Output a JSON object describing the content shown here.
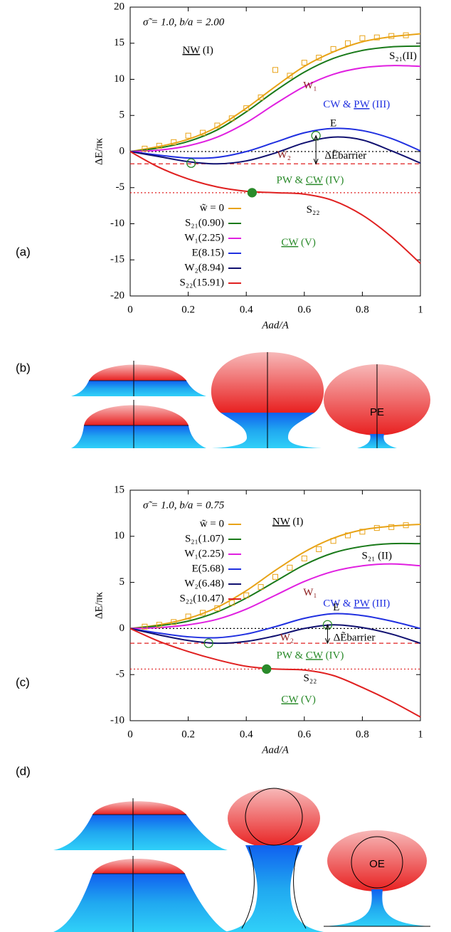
{
  "panel_labels": [
    "(a)",
    "(b)",
    "(c)",
    "(d)"
  ],
  "shape_labels": [
    "PE",
    "OE"
  ],
  "chart_data": [
    {
      "type": "line",
      "title": "σ̃ = 1.0, b/a = 2.00",
      "x_label": "Aad/A",
      "y_label": "ΔE/πκ",
      "xlim": [
        0,
        1
      ],
      "xticks": [
        0,
        0.2,
        0.4,
        0.6,
        0.8,
        1
      ],
      "ylim": [
        -20,
        20
      ],
      "yticks": [
        -20,
        -15,
        -10,
        -5,
        0,
        5,
        10,
        15,
        20
      ],
      "legend": "lower left",
      "x": [
        0,
        0.1,
        0.2,
        0.3,
        0.4,
        0.5,
        0.6,
        0.7,
        0.8,
        0.9,
        1
      ],
      "series": [
        {
          "name": "w̃ = 0",
          "color": "#e8a317",
          "values": [
            0,
            0.7,
            1.7,
            3.4,
            6.0,
            9.0,
            11.8,
            13.8,
            15.2,
            15.9,
            16.3
          ]
        },
        {
          "name": "S₂₁(0.90)",
          "color": "#1a7a1a",
          "values": [
            0,
            0.5,
            1.4,
            3.0,
            5.5,
            8.4,
            11.0,
            12.9,
            14.0,
            14.5,
            14.6
          ]
        },
        {
          "name": "W₁(2.25)",
          "color": "#e020e0",
          "values": [
            0,
            0.2,
            0.8,
            2.0,
            4.0,
            6.6,
            9.0,
            10.7,
            11.6,
            11.9,
            11.8
          ]
        },
        {
          "name": "E(8.15)",
          "color": "#2030e0",
          "values": [
            0,
            -0.5,
            -0.9,
            -0.8,
            0,
            1.3,
            2.6,
            3.2,
            2.9,
            1.8,
            0.1
          ]
        },
        {
          "name": "W₂(8.94)",
          "color": "#101070",
          "values": [
            0,
            -0.7,
            -1.4,
            -1.7,
            -1.3,
            -0.2,
            1.2,
            2.0,
            1.6,
            0.1,
            -1.6
          ]
        },
        {
          "name": "S₂₂(15.91)",
          "color": "#e02020",
          "values": [
            0,
            -2.2,
            -3.8,
            -4.9,
            -5.5,
            -5.7,
            -5.9,
            -6.8,
            -8.8,
            -11.8,
            -15.5
          ]
        }
      ],
      "sample_points": {
        "color": "#e8a317",
        "x": [
          0.05,
          0.1,
          0.15,
          0.2,
          0.25,
          0.3,
          0.35,
          0.4,
          0.45,
          0.5,
          0.55,
          0.6,
          0.65,
          0.7,
          0.75,
          0.8,
          0.85,
          0.9,
          0.95
        ],
        "values": [
          0.4,
          0.8,
          1.3,
          2.2,
          2.6,
          3.6,
          4.6,
          6.0,
          7.5,
          11.3,
          10.5,
          12.3,
          13.0,
          14.2,
          15.0,
          15.7,
          15.8,
          16.0,
          16.1
        ]
      },
      "reference_lines": [
        {
          "value": 0,
          "color": "#000000",
          "style": "dotted"
        },
        {
          "value": -1.7,
          "color": "#e02020",
          "style": "dashed"
        },
        {
          "value": -5.7,
          "color": "#e02020",
          "style": "dotted"
        }
      ],
      "markers": [
        {
          "x": 0.21,
          "y": -1.6,
          "filled": false,
          "color": "#2a8a2a"
        },
        {
          "x": 0.64,
          "y": 2.2,
          "filled": false,
          "color": "#2a8a2a"
        },
        {
          "x": 0.42,
          "y": -5.7,
          "filled": true,
          "color": "#2a8a2a"
        }
      ],
      "annotations": [
        {
          "color": "#000000",
          "parts": [
            {
              "text": "NW",
              "underline": true
            },
            {
              "text": " (I)"
            }
          ]
        },
        {
          "color": "#000000",
          "parts": [
            {
              "text": "S₂₁(II)"
            }
          ]
        },
        {
          "color": "#8b1a1a",
          "parts": [
            {
              "text": "W₁"
            }
          ]
        },
        {
          "color": "#2030e0",
          "parts": [
            {
              "text": "CW & "
            },
            {
              "text": "PW",
              "underline": true
            },
            {
              "text": " (III)"
            }
          ]
        },
        {
          "color": "#000000",
          "parts": [
            {
              "text": "E"
            }
          ]
        },
        {
          "color": "#8b1a1a",
          "parts": [
            {
              "text": "W₂"
            }
          ]
        },
        {
          "color": "#000000",
          "parts": [
            {
              "text": "ΔẼbarrier"
            }
          ]
        },
        {
          "color": "#2a8a2a",
          "parts": [
            {
              "text": "PW & "
            },
            {
              "text": "CW",
              "underline": true
            },
            {
              "text": " (IV)"
            }
          ]
        },
        {
          "color": "#000000",
          "parts": [
            {
              "text": "S₂₂"
            }
          ]
        },
        {
          "color": "#2a8a2a",
          "parts": [
            {
              "text": "CW",
              "underline": true
            },
            {
              "text": " (V)"
            }
          ]
        }
      ]
    },
    {
      "type": "line",
      "title": "σ̃ = 1.0, b/a = 0.75",
      "x_label": "Aad/A",
      "y_label": "ΔE/πκ",
      "xlim": [
        0,
        1
      ],
      "xticks": [
        0,
        0.2,
        0.4,
        0.6,
        0.8,
        1
      ],
      "ylim": [
        -10,
        15
      ],
      "yticks": [
        -10,
        -5,
        0,
        5,
        10,
        15
      ],
      "legend": "upper left",
      "x": [
        0,
        0.1,
        0.2,
        0.3,
        0.4,
        0.5,
        0.6,
        0.7,
        0.8,
        0.9,
        1
      ],
      "series": [
        {
          "name": "w̃ = 0",
          "color": "#e8a317",
          "values": [
            0,
            0.4,
            1.1,
            2.3,
            4.1,
            6.3,
            8.3,
            9.8,
            10.7,
            11.1,
            11.3
          ]
        },
        {
          "name": "S₂₁(1.07)",
          "color": "#1a7a1a",
          "values": [
            0,
            0.3,
            0.8,
            1.8,
            3.3,
            5.1,
            6.9,
            8.2,
            8.9,
            9.2,
            9.2
          ]
        },
        {
          "name": "W₁(2.25)",
          "color": "#e020e0",
          "values": [
            0,
            0.1,
            0.4,
            1.0,
            2.1,
            3.6,
            5.1,
            6.2,
            6.8,
            7.0,
            6.8
          ]
        },
        {
          "name": "E(5.68)",
          "color": "#2030e0",
          "values": [
            0,
            -0.5,
            -0.9,
            -1.0,
            -0.6,
            0.2,
            1.1,
            1.6,
            1.4,
            0.8,
            0
          ]
        },
        {
          "name": "W₂(6.48)",
          "color": "#101070",
          "values": [
            0,
            -0.7,
            -1.3,
            -1.6,
            -1.4,
            -0.8,
            0,
            0.4,
            0.1,
            -0.6,
            -1.6
          ]
        },
        {
          "name": "S₂₂(10.47)",
          "color": "#e02020",
          "values": [
            0,
            -1.4,
            -2.5,
            -3.4,
            -4.1,
            -4.4,
            -4.5,
            -5.1,
            -6.4,
            -7.9,
            -9.6
          ]
        }
      ],
      "sample_points": {
        "color": "#e8a317",
        "x": [
          0.05,
          0.1,
          0.15,
          0.2,
          0.25,
          0.3,
          0.35,
          0.4,
          0.45,
          0.5,
          0.55,
          0.6,
          0.65,
          0.7,
          0.75,
          0.8,
          0.85,
          0.9,
          0.95
        ],
        "values": [
          0.2,
          0.4,
          0.7,
          1.3,
          1.7,
          2.2,
          2.8,
          3.6,
          4.5,
          5.6,
          6.6,
          7.6,
          8.6,
          9.5,
          10.1,
          10.5,
          10.9,
          11.0,
          11.2
        ]
      },
      "reference_lines": [
        {
          "value": 0,
          "color": "#000000",
          "style": "dotted"
        },
        {
          "value": -1.6,
          "color": "#e02020",
          "style": "dashed"
        },
        {
          "value": -4.4,
          "color": "#e02020",
          "style": "dotted"
        }
      ],
      "markers": [
        {
          "x": 0.27,
          "y": -1.6,
          "filled": false,
          "color": "#2a8a2a"
        },
        {
          "x": 0.68,
          "y": 0.4,
          "filled": false,
          "color": "#2a8a2a"
        },
        {
          "x": 0.47,
          "y": -4.4,
          "filled": true,
          "color": "#2a8a2a"
        }
      ],
      "annotations": [
        {
          "color": "#000000",
          "parts": [
            {
              "text": "NW",
              "underline": true
            },
            {
              "text": " (I)"
            }
          ]
        },
        {
          "color": "#000000",
          "parts": [
            {
              "text": "S₂₁ (II)"
            }
          ]
        },
        {
          "color": "#8b1a1a",
          "parts": [
            {
              "text": "W₁"
            }
          ]
        },
        {
          "color": "#2030e0",
          "parts": [
            {
              "text": "CW & "
            },
            {
              "text": "PW",
              "underline": true
            },
            {
              "text": " (III)"
            }
          ]
        },
        {
          "color": "#000000",
          "parts": [
            {
              "text": "E"
            }
          ]
        },
        {
          "color": "#8b1a1a",
          "parts": [
            {
              "text": "W₂"
            }
          ]
        },
        {
          "color": "#000000",
          "parts": [
            {
              "text": "ΔẼbarrier"
            }
          ]
        },
        {
          "color": "#2a8a2a",
          "parts": [
            {
              "text": "PW & "
            },
            {
              "text": "CW",
              "underline": true
            },
            {
              "text": " (IV)"
            }
          ]
        },
        {
          "color": "#000000",
          "parts": [
            {
              "text": "S₂₂"
            }
          ]
        },
        {
          "color": "#2a8a2a",
          "parts": [
            {
              "text": "CW",
              "underline": true
            },
            {
              "text": " (V)"
            }
          ]
        }
      ]
    }
  ]
}
